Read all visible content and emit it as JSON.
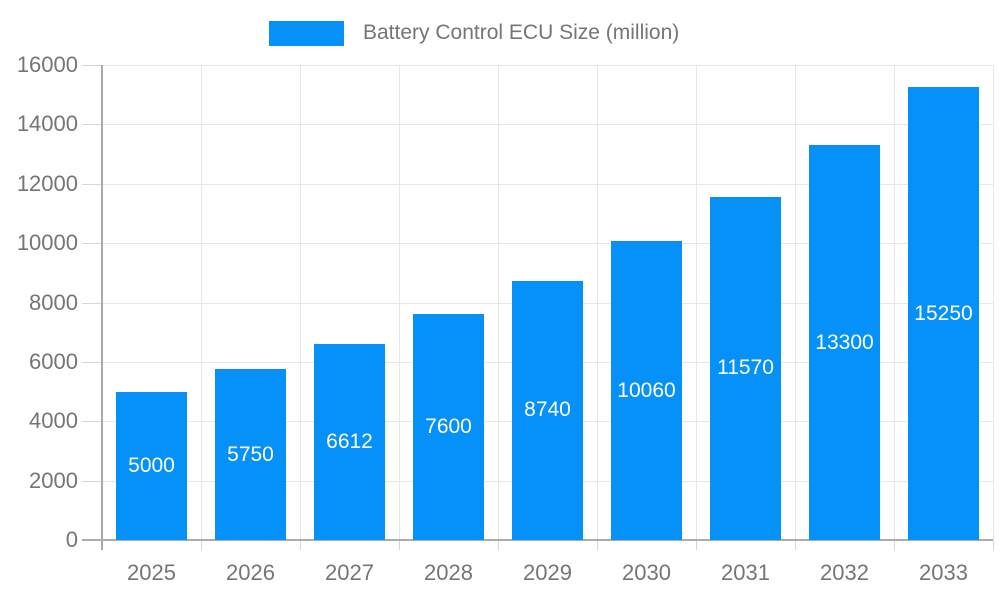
{
  "chart_data": {
    "type": "bar",
    "title": "",
    "legend_label": "Battery Control ECU Size (million)",
    "legend_position": "top",
    "categories": [
      "2025",
      "2026",
      "2027",
      "2028",
      "2029",
      "2030",
      "2031",
      "2032",
      "2033"
    ],
    "values": [
      5000,
      5750,
      6612,
      7600,
      8740,
      10060,
      11570,
      13300,
      15250
    ],
    "value_labels": [
      "5000",
      "5750",
      "6612",
      "7600",
      "8740",
      "10060",
      "11570",
      "13300",
      "15250"
    ],
    "xlabel": "",
    "ylabel": "",
    "ylim": [
      0,
      16000
    ],
    "y_ticks": [
      0,
      2000,
      4000,
      6000,
      8000,
      10000,
      12000,
      14000,
      16000
    ],
    "grid": "both",
    "colors": {
      "bar": "#0591f8",
      "value_text": "#ffffff",
      "axis_text": "#757575",
      "grid_line": "#e7e7e7",
      "tick_line": "#d6d6d6",
      "axis_line": "#ababab",
      "background": "#ffffff"
    }
  }
}
